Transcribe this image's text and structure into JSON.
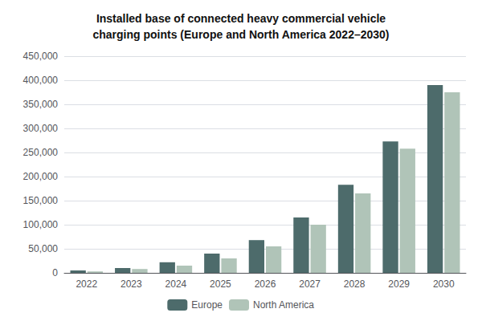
{
  "chart_data": {
    "type": "bar",
    "title": "Installed base of connected heavy commercial vehicle\ncharging points (Europe and North America 2022–2030)",
    "categories": [
      "2022",
      "2023",
      "2024",
      "2025",
      "2026",
      "2027",
      "2028",
      "2029",
      "2030"
    ],
    "series": [
      {
        "name": "Europe",
        "color": "#4d6b6b",
        "values": [
          5000,
          10000,
          22000,
          40000,
          68000,
          115000,
          183000,
          273000,
          390000
        ]
      },
      {
        "name": "North America",
        "color": "#b0c4b8",
        "values": [
          3000,
          8000,
          15000,
          30000,
          55000,
          100000,
          165000,
          258000,
          375000
        ]
      }
    ],
    "ylim": [
      0,
      450000
    ],
    "yticks": [
      0,
      {
        "value": 50000,
        "label": "50,000"
      },
      {
        "value": 100000,
        "label": "100,000"
      },
      {
        "value": 150000,
        "label": "150,000"
      },
      {
        "value": 200000,
        "label": "200,000"
      },
      {
        "value": 250000,
        "label": "250,000"
      },
      {
        "value": 300000,
        "label": "300,000"
      },
      {
        "value": 350000,
        "label": "350,000"
      },
      {
        "value": 400000,
        "label": "400,000"
      },
      {
        "value": 450000,
        "label": "450,000"
      }
    ],
    "grid": true,
    "legend": "bottom"
  }
}
